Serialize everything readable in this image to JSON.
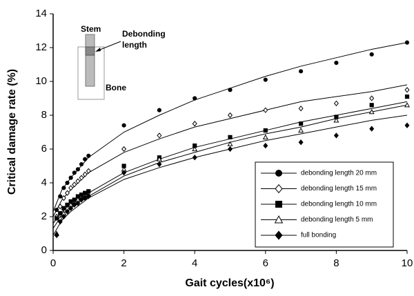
{
  "chart_data": {
    "type": "scatter",
    "xlabel": "Gait cycles(x10⁶)",
    "ylabel": "Critical damage rate (%)",
    "x": [
      0.1,
      0.2,
      0.3,
      0.4,
      0.5,
      0.6,
      0.7,
      0.8,
      0.9,
      1,
      2,
      3,
      4,
      5,
      6,
      7,
      8,
      9,
      10
    ],
    "xlim": [
      0,
      10
    ],
    "xticks": [
      0,
      2,
      4,
      6,
      8,
      10
    ],
    "ylim": [
      0,
      14
    ],
    "yticks": [
      0,
      2,
      4,
      6,
      8,
      10,
      12,
      14
    ],
    "legend": "lower-right",
    "fit_x": [
      0,
      0.25,
      0.5,
      1,
      2,
      3,
      4,
      5,
      6,
      7,
      8,
      9,
      10
    ],
    "series": [
      {
        "name": "debonding length 20 mm",
        "color": "#000000",
        "marker": "circle",
        "filled": true,
        "values": [
          2.4,
          3.2,
          3.7,
          4.0,
          4.3,
          4.6,
          4.8,
          5.1,
          5.4,
          5.6,
          7.4,
          8.3,
          9.0,
          9.5,
          10.1,
          10.6,
          11.1,
          11.6,
          12.3
        ],
        "fit": [
          2.3,
          3.6,
          4.3,
          5.5,
          7.0,
          8.0,
          8.9,
          9.6,
          10.3,
          10.9,
          11.4,
          11.9,
          12.3
        ]
      },
      {
        "name": "debonding length 15 mm",
        "color": "#000000",
        "marker": "diamond",
        "filled": false,
        "values": [
          2.0,
          2.6,
          3.1,
          3.4,
          3.7,
          3.9,
          4.1,
          4.3,
          4.5,
          4.7,
          6.0,
          6.8,
          7.5,
          8.0,
          8.3,
          8.4,
          8.7,
          9.0,
          9.5
        ],
        "fit": [
          2.0,
          3.0,
          3.6,
          4.6,
          5.8,
          6.6,
          7.3,
          7.8,
          8.3,
          8.8,
          9.1,
          9.4,
          9.8
        ]
      },
      {
        "name": "debonding length 10 mm",
        "color": "#000000",
        "marker": "square",
        "filled": true,
        "values": [
          1.9,
          2.2,
          2.5,
          2.7,
          2.9,
          3.0,
          3.2,
          3.3,
          3.4,
          3.5,
          5.0,
          5.5,
          6.2,
          6.7,
          7.1,
          7.5,
          7.9,
          8.6,
          9.1
        ],
        "fit": [
          1.6,
          2.3,
          2.7,
          3.4,
          4.6,
          5.4,
          6.1,
          6.6,
          7.1,
          7.6,
          8.0,
          8.4,
          8.8
        ]
      },
      {
        "name": "debonding length 5 mm",
        "color": "#000000",
        "marker": "triangle",
        "filled": false,
        "values": [
          1.0,
          1.9,
          2.2,
          2.5,
          2.7,
          2.8,
          3.0,
          3.1,
          3.2,
          3.3,
          4.8,
          5.4,
          6.0,
          6.3,
          6.7,
          7.1,
          7.7,
          8.2,
          8.6
        ],
        "fit": [
          1.3,
          2.1,
          2.6,
          3.2,
          4.4,
          5.2,
          5.8,
          6.4,
          6.9,
          7.3,
          7.8,
          8.2,
          8.6
        ]
      },
      {
        "name": "full bonding",
        "color": "#000000",
        "marker": "diamond",
        "filled": true,
        "values": [
          0.9,
          1.7,
          2.0,
          2.3,
          2.5,
          2.7,
          2.8,
          3.0,
          3.1,
          3.2,
          4.6,
          5.1,
          5.5,
          6.0,
          6.2,
          6.4,
          6.8,
          7.2,
          7.4
        ],
        "fit": [
          0.9,
          1.8,
          2.3,
          3.1,
          4.2,
          4.9,
          5.5,
          6.0,
          6.5,
          6.9,
          7.3,
          7.7,
          8.0
        ]
      }
    ],
    "annotations": {
      "stem": "Stem",
      "debonding_length": [
        "Debonding",
        "length"
      ],
      "bone": "Bone"
    }
  }
}
